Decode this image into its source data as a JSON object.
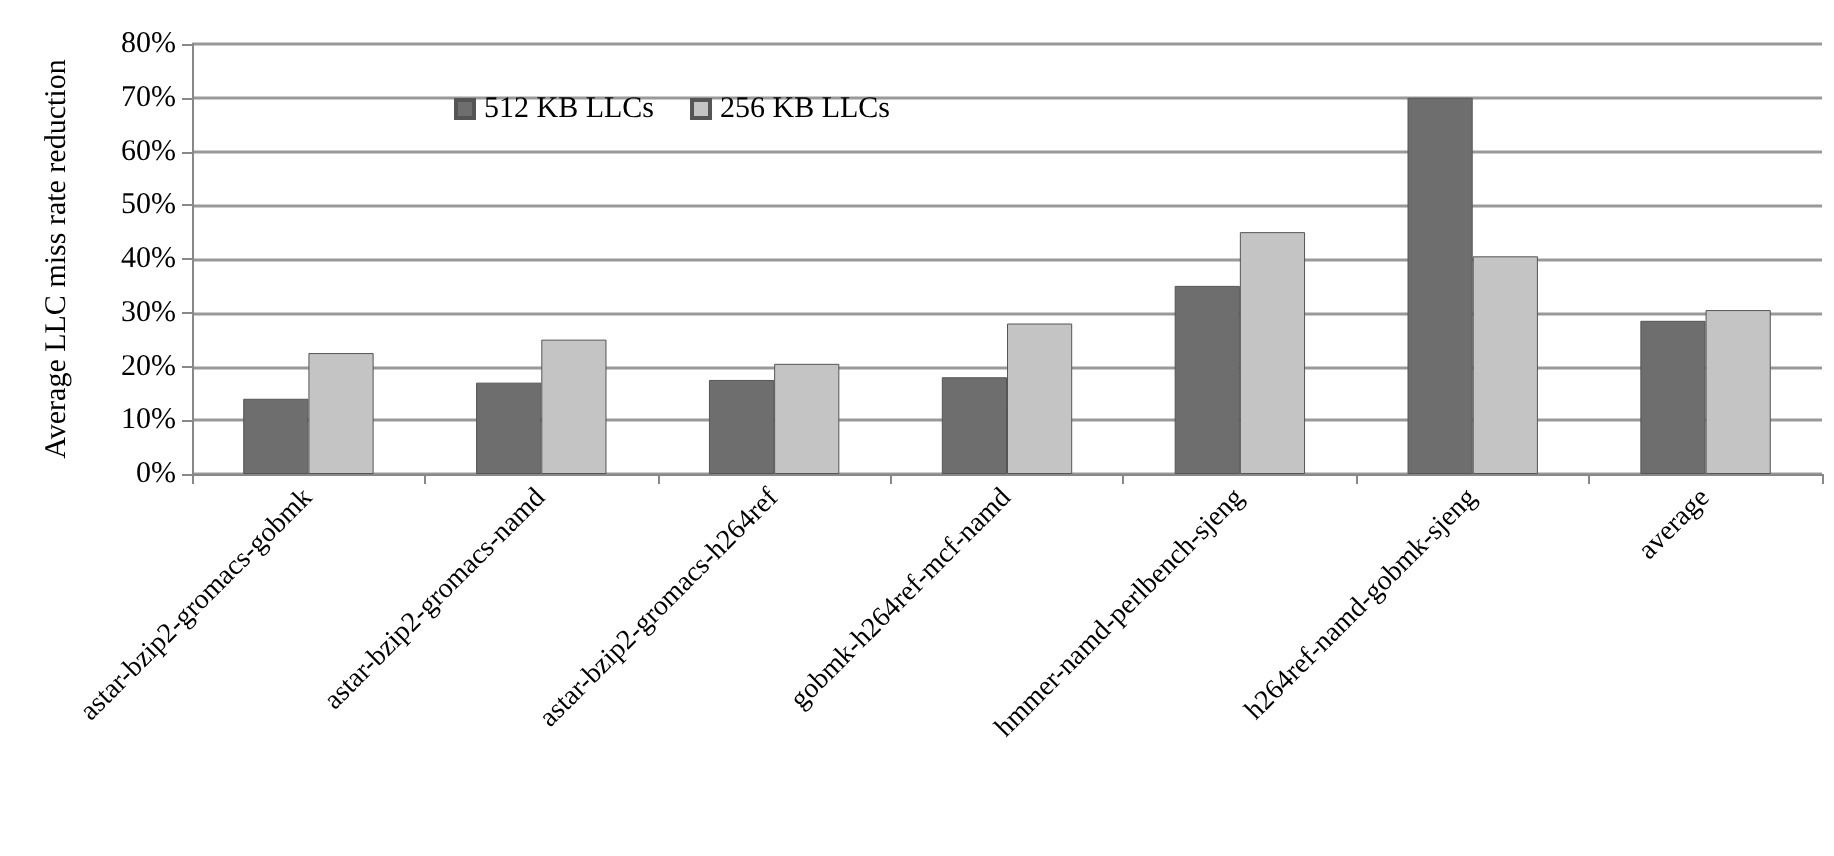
{
  "chart_data": {
    "type": "bar",
    "ylabel": "Average LLC miss rate reduction",
    "categories": [
      "astar-bzip2-gromacs-gobmk",
      "astar-bzip2-gromacs-namd",
      "astar-bzip2-gromacs-h264ref",
      "gobmk-h264ref-mcf-namd",
      "hmmer-namd-perlbench-sjeng",
      "h264ref-namd-gobmk-sjeng",
      "average"
    ],
    "series": [
      {
        "name": "512 KB LLCs",
        "color": "#6e6e6e",
        "values": [
          14,
          17,
          17.5,
          18,
          35,
          70,
          28.5
        ]
      },
      {
        "name": "256 KB LLCs",
        "color": "#c4c4c4",
        "values": [
          22.5,
          25,
          20.5,
          28,
          45,
          40.5,
          30.5
        ]
      }
    ],
    "ylim": [
      0,
      80
    ],
    "yticks": [
      {
        "value": 0,
        "label": "0%"
      },
      {
        "value": 10,
        "label": "10%"
      },
      {
        "value": 20,
        "label": "20%"
      },
      {
        "value": 30,
        "label": "30%"
      },
      {
        "value": 40,
        "label": "40%"
      },
      {
        "value": 50,
        "label": "50%"
      },
      {
        "value": 60,
        "label": "60%"
      },
      {
        "value": 70,
        "label": "70%"
      },
      {
        "value": 80,
        "label": "80%"
      }
    ],
    "grid": "y",
    "legend": "top"
  }
}
